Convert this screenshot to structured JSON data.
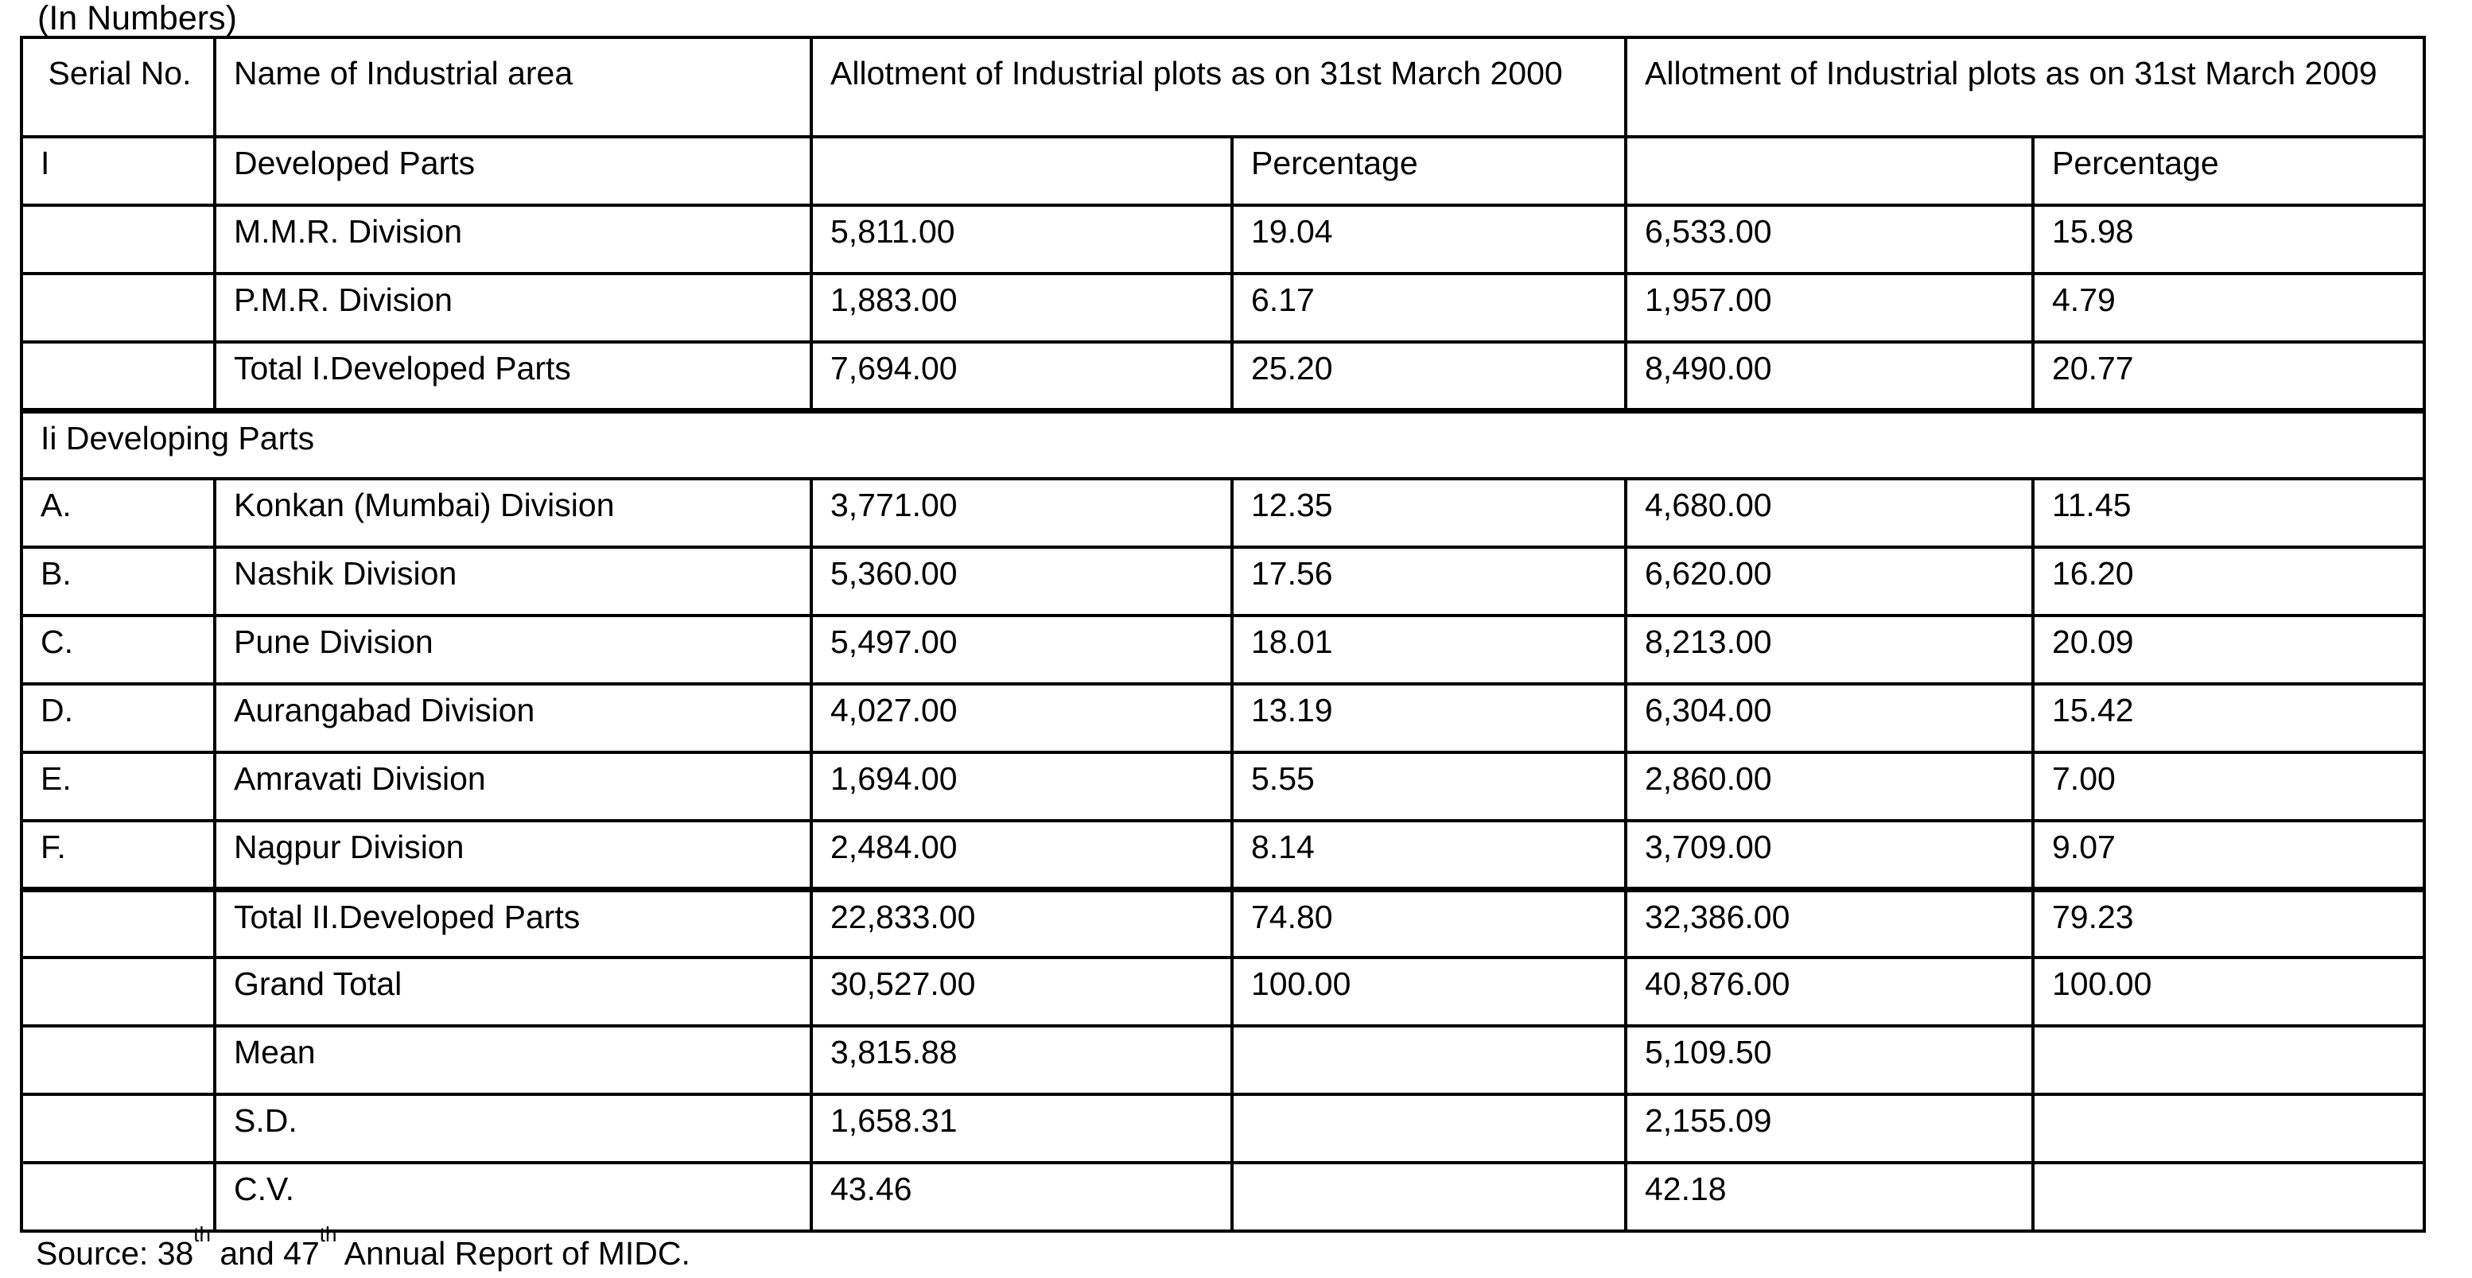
{
  "page": {
    "units_label": "(In Numbers)",
    "source": {
      "prefix": "Source: 38",
      "sup1": "th",
      "mid": " and 47",
      "sup2": "th",
      "suffix": " Annual Report of MIDC."
    }
  },
  "table": {
    "headers": {
      "serial": "Serial No.",
      "name": "Name of Industrial area",
      "allotment_2000": "Allotment of Industrial plots as on 31st March 2000",
      "allotment_2009": "Allotment of Industrial plots as on 31st March 2009",
      "percentage_2000": "Percentage",
      "percentage_2009": "Percentage"
    },
    "rows": [
      {
        "serial": "I",
        "name": "Developed Parts",
        "v2000": "",
        "p2000": "Percentage",
        "v2009": "",
        "p2009": "Percentage"
      },
      {
        "serial": "",
        "name": "M.M.R. Division",
        "v2000": "5,811.00",
        "p2000": "19.04",
        "v2009": "6,533.00",
        "p2009": "15.98"
      },
      {
        "serial": "",
        "name": "P.M.R. Division",
        "v2000": "1,883.00",
        "p2000": "6.17",
        "v2009": "1,957.00",
        "p2009": "4.79"
      },
      {
        "serial": "",
        "name": "Total I.Developed Parts",
        "v2000": "7,694.00",
        "p2000": "25.20",
        "v2009": "8,490.00",
        "p2009": "20.77"
      },
      {
        "section": true,
        "label": "Ii Developing Parts"
      },
      {
        "serial": "A.",
        "name": "Konkan (Mumbai) Division",
        "v2000": "3,771.00",
        "p2000": "12.35",
        "v2009": "4,680.00",
        "p2009": "11.45"
      },
      {
        "serial": "B.",
        "name": "Nashik Division",
        "v2000": "5,360.00",
        "p2000": "17.56",
        "v2009": "6,620.00",
        "p2009": "16.20"
      },
      {
        "serial": "C.",
        "name": "Pune Division",
        "v2000": "5,497.00",
        "p2000": "18.01",
        "v2009": "8,213.00",
        "p2009": "20.09"
      },
      {
        "serial": "D.",
        "name": "Aurangabad Division",
        "v2000": "4,027.00",
        "p2000": "13.19",
        "v2009": "6,304.00",
        "p2009": "15.42"
      },
      {
        "serial": "E.",
        "name": "Amravati Division",
        "v2000": "1,694.00",
        "p2000": "5.55",
        "v2009": "2,860.00",
        "p2009": "7.00"
      },
      {
        "serial": "F.",
        "name": "Nagpur Division",
        "v2000": "2,484.00",
        "p2000": "8.14",
        "v2009": "3,709.00",
        "p2009": "9.07"
      },
      {
        "serial": "",
        "name": "Total II.Developed Parts",
        "v2000": "22,833.00",
        "p2000": "74.80",
        "v2009": "32,386.00",
        "p2009": "79.23"
      },
      {
        "serial": "",
        "name": "Grand Total",
        "v2000": "30,527.00",
        "p2000": "100.00",
        "v2009": "40,876.00",
        "p2009": "100.00"
      },
      {
        "serial": "",
        "name": "Mean",
        "v2000": "3,815.88",
        "p2000": "",
        "v2009": "5,109.50",
        "p2009": ""
      },
      {
        "serial": "",
        "name": "S.D.",
        "v2000": "1,658.31",
        "p2000": "",
        "v2009": "2,155.09",
        "p2009": ""
      },
      {
        "serial": "",
        "name": "C.V.",
        "v2000": "43.46",
        "p2000": "",
        "v2009": "42.18",
        "p2009": ""
      }
    ]
  },
  "colors": {
    "text": "#000000",
    "border": "#000000",
    "background": "#ffffff"
  }
}
